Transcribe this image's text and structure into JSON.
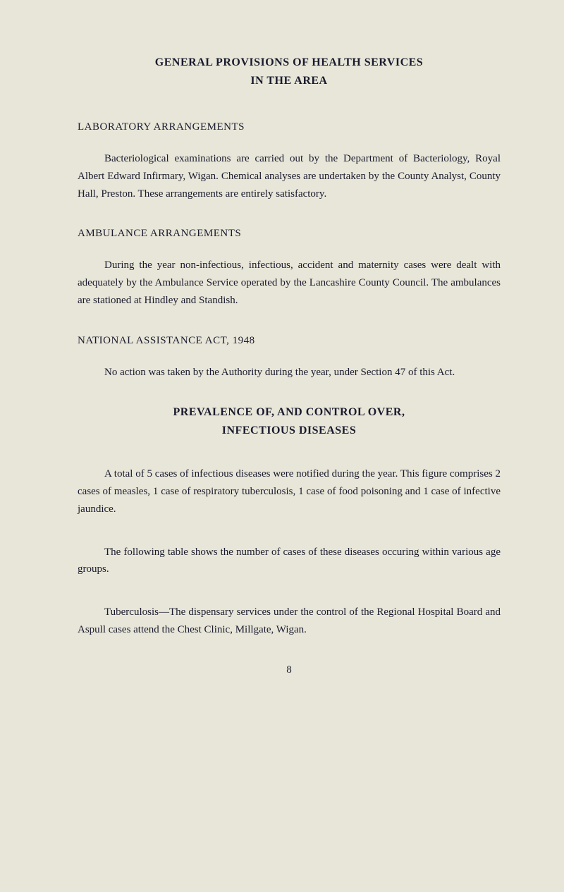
{
  "document": {
    "background_color": "#e8e6d8",
    "text_color": "#1a1a2e",
    "font_family": "Georgia, serif",
    "title": "GENERAL PROVISIONS OF HEALTH SERVICES",
    "subtitle": "IN THE AREA",
    "sections": [
      {
        "heading": "LABORATORY ARRANGEMENTS",
        "paragraph": "Bacteriological examinations are carried out by the Department of Bacteriology, Royal Albert Edward Infirmary, Wigan. Chemical analyses are undertaken by the County Analyst, County Hall, Preston. These arrangements are entirely satisfactory."
      },
      {
        "heading": "AMBULANCE ARRANGEMENTS",
        "paragraph": "During the year non-infectious, infectious, accident and maternity cases were dealt with adequately by the Ambulance Service operated by the Lancashire County Council. The ambulances are stationed at Hindley and Standish."
      },
      {
        "heading": "NATIONAL ASSISTANCE ACT, 1948",
        "paragraph": "No action was taken by the Authority during the year, under Section 47 of this Act."
      }
    ],
    "heading2": "PREVALENCE OF, AND CONTROL OVER,",
    "heading2_sub": "INFECTIOUS DISEASES",
    "paragraphs2": [
      "A total of 5 cases of infectious diseases were notified during the year. This figure comprises 2 cases of measles, 1 case of respiratory tuberculosis, 1 case of food poisoning and 1 case of infective jaundice.",
      "The following table shows the number of cases of these diseases occuring within various age groups.",
      "Tuberculosis—The dispensary services under the control of the Regional Hospital Board and Aspull cases attend the Chest Clinic, Millgate, Wigan."
    ],
    "page_number": "8"
  }
}
